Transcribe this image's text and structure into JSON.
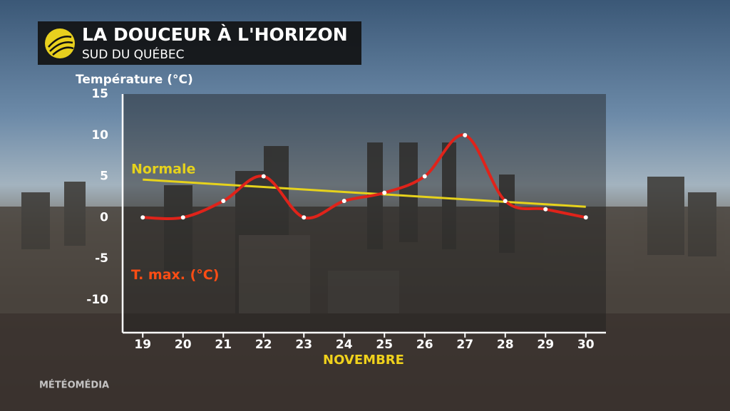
{
  "header": {
    "title": "LA DOUCEUR À L'HORIZON",
    "subtitle": "SUD DU QUÉBEC",
    "brand": "MÉTÉOMÉDIA"
  },
  "chart_data": {
    "type": "line",
    "y_label": "Température (°C)",
    "x_label": "NOVEMBRE",
    "x": [
      19,
      20,
      21,
      22,
      23,
      24,
      25,
      26,
      27,
      28,
      29,
      30
    ],
    "series": [
      {
        "name": "Normale",
        "color": "#e6d21c",
        "smooth": false,
        "markers": false,
        "values": [
          4.6,
          4.3,
          4.0,
          3.7,
          3.4,
          3.1,
          2.8,
          2.5,
          2.2,
          1.9,
          1.6,
          1.3
        ]
      },
      {
        "name": "T. max. (°C)",
        "color": "#e0231a",
        "label_color": "#ff4d14",
        "smooth": true,
        "markers": true,
        "values": [
          0,
          0,
          2,
          5,
          0,
          2,
          3,
          5,
          10,
          2,
          1,
          0
        ]
      }
    ],
    "xlim": [
      18.5,
      30.5
    ],
    "ylim": [
      -14,
      15
    ],
    "xticks": [
      19,
      20,
      21,
      22,
      23,
      24,
      25,
      26,
      27,
      28,
      29,
      30
    ],
    "yticks": [
      -10,
      -5,
      0,
      5,
      10,
      15
    ]
  }
}
